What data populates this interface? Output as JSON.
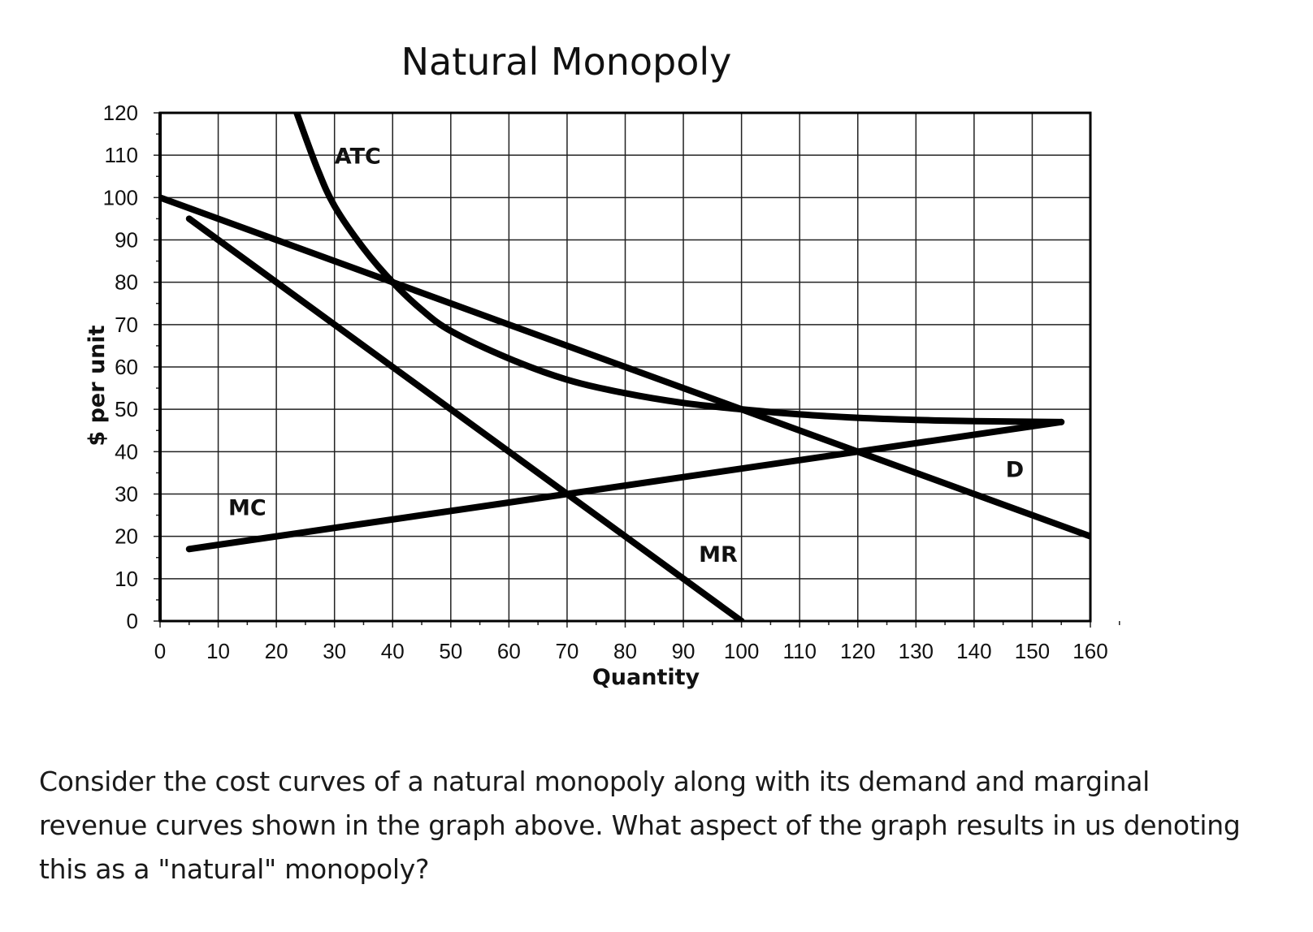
{
  "chart_data": {
    "type": "line",
    "title": "Natural Monopoly",
    "xlabel": "Quantity",
    "ylabel": "$ per unit",
    "xlim": [
      0,
      160
    ],
    "ylim": [
      0,
      120
    ],
    "xticks": [
      0,
      10,
      20,
      30,
      40,
      50,
      60,
      70,
      80,
      90,
      100,
      110,
      120,
      130,
      140,
      150,
      160
    ],
    "yticks": [
      0,
      10,
      20,
      30,
      40,
      50,
      60,
      70,
      80,
      90,
      100,
      110,
      120
    ],
    "grid": true,
    "legend": "none",
    "line_color": "#000000",
    "series": [
      {
        "name": "D",
        "x": [
          0,
          160
        ],
        "y": [
          100,
          20
        ],
        "label_at": [
          147,
          34
        ]
      },
      {
        "name": "MR",
        "x": [
          5,
          100
        ],
        "y": [
          95,
          0
        ],
        "label_at": [
          96,
          14
        ]
      },
      {
        "name": "MC",
        "x": [
          5,
          155
        ],
        "y": [
          17,
          47
        ],
        "label_at": [
          15,
          25
        ]
      },
      {
        "name": "ATC",
        "x": [
          23.5,
          27,
          30,
          35,
          40,
          45,
          50,
          60,
          70,
          80,
          90,
          100,
          110,
          120,
          130,
          140,
          155
        ],
        "y": [
          120,
          107,
          98,
          88,
          80,
          73.5,
          68.5,
          62,
          57,
          53.8,
          51.5,
          50,
          48.8,
          48,
          47.5,
          47.2,
          47
        ],
        "label_at": [
          34,
          108
        ]
      }
    ]
  },
  "question": "Consider the cost curves of a natural monopoly along with its demand and marginal revenue curves shown in the graph above. What aspect of the graph results in us denoting this as a \"natural\" monopoly?"
}
